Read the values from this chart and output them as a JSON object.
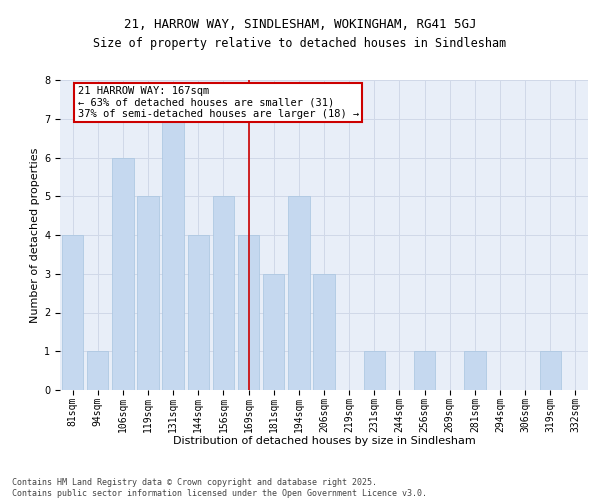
{
  "title1": "21, HARROW WAY, SINDLESHAM, WOKINGHAM, RG41 5GJ",
  "title2": "Size of property relative to detached houses in Sindlesham",
  "xlabel": "Distribution of detached houses by size in Sindlesham",
  "ylabel": "Number of detached properties",
  "categories": [
    "81sqm",
    "94sqm",
    "106sqm",
    "119sqm",
    "131sqm",
    "144sqm",
    "156sqm",
    "169sqm",
    "181sqm",
    "194sqm",
    "206sqm",
    "219sqm",
    "231sqm",
    "244sqm",
    "256sqm",
    "269sqm",
    "281sqm",
    "294sqm",
    "306sqm",
    "319sqm",
    "332sqm"
  ],
  "values": [
    4,
    1,
    6,
    5,
    7,
    4,
    5,
    4,
    3,
    5,
    3,
    0,
    1,
    0,
    1,
    0,
    1,
    0,
    0,
    1,
    0
  ],
  "bar_color": "#c5d8ef",
  "bar_edge_color": "#a8c4e0",
  "vline_color": "#cc0000",
  "annotation_text": "21 HARROW WAY: 167sqm\n← 63% of detached houses are smaller (31)\n37% of semi-detached houses are larger (18) →",
  "annotation_box_color": "#ffffff",
  "annotation_box_edge_color": "#cc0000",
  "ylim": [
    0,
    8
  ],
  "yticks": [
    0,
    1,
    2,
    3,
    4,
    5,
    6,
    7,
    8
  ],
  "grid_color": "#d0d8e8",
  "background_color": "#e8eef8",
  "footer_text": "Contains HM Land Registry data © Crown copyright and database right 2025.\nContains public sector information licensed under the Open Government Licence v3.0.",
  "title1_fontsize": 9,
  "title2_fontsize": 8.5,
  "xlabel_fontsize": 8,
  "ylabel_fontsize": 8,
  "tick_fontsize": 7,
  "annotation_fontsize": 7.5,
  "footer_fontsize": 6
}
